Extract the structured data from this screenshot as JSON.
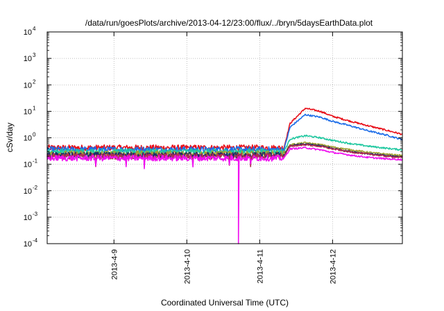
{
  "chart_data": {
    "type": "line",
    "title": "/data/run/goesPlots/archive/2013-04-12/23:00/flux/../bryn/5daysEarthData.plot",
    "xlabel": "Coordinated Universal Time (UTC)",
    "ylabel": "cSv/day",
    "yscale": "log",
    "ylim": [
      0.0001,
      10000
    ],
    "xlim": [
      "2013-04-08 02:00",
      "2013-04-12 23:00"
    ],
    "grid": true,
    "x_ticks": [
      "2013-4-9",
      "2013-4-10",
      "2013-4-11",
      "2013-4-12"
    ],
    "y_ticks": [
      {
        "value": 0.0001,
        "base": "10",
        "exp": "-4"
      },
      {
        "value": 0.001,
        "base": "10",
        "exp": "-3"
      },
      {
        "value": 0.01,
        "base": "10",
        "exp": "-2"
      },
      {
        "value": 0.1,
        "base": "10",
        "exp": "-1"
      },
      {
        "value": 1,
        "base": "10",
        "exp": "0"
      },
      {
        "value": 10,
        "base": "10",
        "exp": "1"
      },
      {
        "value": 100,
        "base": "10",
        "exp": "2"
      },
      {
        "value": 1000,
        "base": "10",
        "exp": "3"
      },
      {
        "value": 10000,
        "base": "10",
        "exp": "4"
      }
    ],
    "x": [
      "2013-04-08 02:00",
      "2013-04-09 00:00",
      "2013-04-10 00:00",
      "2013-04-11 00:00",
      "2013-04-11 08:00",
      "2013-04-11 10:00",
      "2013-04-11 15:00",
      "2013-04-11 20:00",
      "2013-04-12 00:00",
      "2013-04-12 06:00",
      "2013-04-12 12:00",
      "2013-04-12 18:00",
      "2013-04-12 23:00"
    ],
    "series": [
      {
        "color": "#e8101a",
        "values": [
          0.42,
          0.42,
          0.42,
          0.42,
          0.42,
          3.5,
          13,
          10,
          6.5,
          4.2,
          2.8,
          1.9,
          1.35
        ]
      },
      {
        "color": "#1e6ee8",
        "values": [
          0.36,
          0.36,
          0.36,
          0.36,
          0.36,
          2.5,
          7.5,
          6.0,
          4.2,
          2.8,
          1.8,
          1.25,
          0.85
        ]
      },
      {
        "color": "#20c8a0",
        "values": [
          0.3,
          0.3,
          0.3,
          0.3,
          0.3,
          0.9,
          1.2,
          1.0,
          0.8,
          0.6,
          0.48,
          0.4,
          0.35
        ]
      },
      {
        "color": "#a0a030",
        "values": [
          0.25,
          0.25,
          0.25,
          0.25,
          0.25,
          0.55,
          0.65,
          0.55,
          0.45,
          0.35,
          0.28,
          0.24,
          0.21
        ]
      },
      {
        "color": "#1a2a6a",
        "values": [
          0.22,
          0.22,
          0.22,
          0.22,
          0.22,
          0.5,
          0.58,
          0.5,
          0.4,
          0.3,
          0.25,
          0.21,
          0.19
        ]
      },
      {
        "color": "#b03050",
        "values": [
          0.2,
          0.2,
          0.2,
          0.2,
          0.2,
          0.48,
          0.55,
          0.47,
          0.38,
          0.29,
          0.24,
          0.2,
          0.18
        ]
      },
      {
        "color": "#f010f0",
        "values": [
          0.17,
          0.17,
          0.17,
          0.17,
          0.17,
          0.38,
          0.42,
          0.35,
          0.28,
          0.22,
          0.18,
          0.16,
          0.15
        ]
      }
    ]
  }
}
